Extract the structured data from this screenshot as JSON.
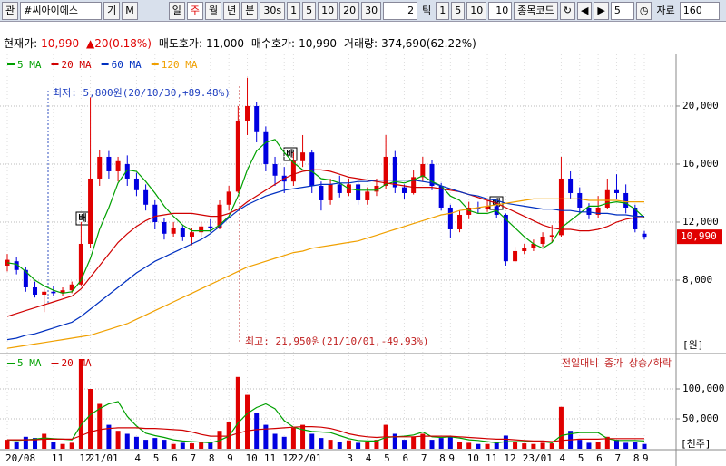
{
  "toolbar": {
    "search_icon": "관",
    "code": "#씨아이에스",
    "buttons": [
      "기",
      "M"
    ],
    "periods": [
      "일",
      "주",
      "월",
      "년",
      "분",
      "30s",
      "1",
      "5",
      "10",
      "20",
      "30"
    ],
    "tick_count": "2",
    "tick_label": "틱",
    "tick_buttons": [
      "1",
      "5",
      "10",
      "10"
    ],
    "code_label": "종목코드",
    "step": "5",
    "data_label": "자료",
    "data_count": "160"
  },
  "info": {
    "price_label": "현재가:",
    "price": "10,990",
    "change": "▲20(0.18%)",
    "ask_label": "매도호가:",
    "ask": "11,000",
    "bid_label": "매수호가:",
    "bid": "10,990",
    "volume_label": "거래량:",
    "volume": "374,690(62.22%)"
  },
  "chart_data": {
    "type": "candlestick",
    "categories": [
      "20/08",
      null,
      null,
      null,
      null,
      "11",
      null,
      null,
      "12",
      "21/01",
      null,
      null,
      null,
      null,
      "4",
      null,
      "5",
      null,
      "6",
      null,
      "7",
      null,
      "8",
      null,
      "9",
      null,
      "10",
      null,
      "11",
      null,
      "12",
      "22/01",
      null,
      null,
      null,
      null,
      null,
      "3",
      null,
      "4",
      null,
      "5",
      null,
      "6",
      null,
      "7",
      null,
      "8",
      "9",
      null,
      "10",
      null,
      "11",
      null,
      "12",
      null,
      "23/01",
      null,
      null,
      null,
      "4",
      null,
      "5",
      null,
      "6",
      null,
      "7",
      null,
      "8",
      "9"
    ],
    "candles": [
      [
        9000,
        9800,
        8600,
        9400
      ],
      [
        9300,
        9600,
        8400,
        8700
      ],
      [
        8700,
        8900,
        7200,
        7500
      ],
      [
        7500,
        7900,
        6800,
        7000
      ],
      [
        7000,
        7400,
        5800,
        7200
      ],
      [
        7200,
        7600,
        6900,
        7100
      ],
      [
        7100,
        7500,
        6900,
        7300
      ],
      [
        7300,
        7900,
        7100,
        7700
      ],
      [
        7700,
        12000,
        7600,
        10500
      ],
      [
        10500,
        20600,
        10200,
        15000
      ],
      [
        15000,
        17000,
        14500,
        16500
      ],
      [
        16500,
        16900,
        15000,
        15500
      ],
      [
        15500,
        16500,
        14800,
        16200
      ],
      [
        16000,
        16600,
        14500,
        15000
      ],
      [
        15000,
        15400,
        13800,
        14200
      ],
      [
        14200,
        14600,
        12800,
        13200
      ],
      [
        13200,
        13500,
        11500,
        12000
      ],
      [
        12000,
        12300,
        10800,
        11200
      ],
      [
        11200,
        12000,
        11000,
        11600
      ],
      [
        11600,
        11800,
        10700,
        11000
      ],
      [
        11000,
        11600,
        10400,
        11300
      ],
      [
        11300,
        12000,
        11000,
        11700
      ],
      [
        11700,
        12200,
        11300,
        11600
      ],
      [
        11600,
        13500,
        11500,
        13200
      ],
      [
        13200,
        14500,
        12800,
        14100
      ],
      [
        14100,
        20000,
        14000,
        19000
      ],
      [
        19000,
        21950,
        18000,
        20000
      ],
      [
        20000,
        20300,
        17500,
        18200
      ],
      [
        18200,
        18600,
        15500,
        16000
      ],
      [
        16000,
        16500,
        14500,
        15200
      ],
      [
        15200,
        15800,
        14000,
        14800
      ],
      [
        14800,
        16800,
        14500,
        16200
      ],
      [
        16200,
        18000,
        15800,
        16800
      ],
      [
        16800,
        17000,
        14000,
        14500
      ],
      [
        14500,
        14800,
        12800,
        13500
      ],
      [
        13500,
        15000,
        13200,
        14600
      ],
      [
        14600,
        15200,
        13700,
        14000
      ],
      [
        14000,
        15000,
        13800,
        14600
      ],
      [
        14600,
        14800,
        13200,
        13500
      ],
      [
        13500,
        14400,
        13200,
        14100
      ],
      [
        14100,
        15000,
        13800,
        14500
      ],
      [
        14500,
        18000,
        14300,
        16500
      ],
      [
        16500,
        16900,
        14000,
        14400
      ],
      [
        14400,
        14600,
        13600,
        14000
      ],
      [
        14000,
        15600,
        13900,
        15100
      ],
      [
        15100,
        16500,
        14800,
        16000
      ],
      [
        16000,
        16300,
        14200,
        14500
      ],
      [
        14500,
        14700,
        12800,
        13000
      ],
      [
        13000,
        13200,
        10900,
        11500
      ],
      [
        11500,
        12800,
        11300,
        12500
      ],
      [
        12500,
        13400,
        12200,
        13000
      ],
      [
        13000,
        13400,
        12600,
        12900
      ],
      [
        12900,
        13500,
        12700,
        13100
      ],
      [
        13100,
        13400,
        12300,
        12500
      ],
      [
        12500,
        12600,
        9000,
        9300
      ],
      [
        9300,
        10300,
        9200,
        10000
      ],
      [
        10000,
        10500,
        9800,
        10200
      ],
      [
        10200,
        10800,
        10000,
        10500
      ],
      [
        10500,
        11300,
        10300,
        11000
      ],
      [
        11000,
        11800,
        10600,
        11100
      ],
      [
        11100,
        16500,
        11000,
        15000
      ],
      [
        15000,
        15500,
        13600,
        14000
      ],
      [
        14000,
        14400,
        12600,
        13000
      ],
      [
        13000,
        13300,
        12200,
        12500
      ],
      [
        12500,
        13800,
        12300,
        13000
      ],
      [
        13000,
        15000,
        12900,
        14200
      ],
      [
        14200,
        15300,
        13600,
        14000
      ],
      [
        14000,
        14600,
        12600,
        13000
      ],
      [
        13000,
        13200,
        11300,
        11500
      ],
      [
        11200,
        11400,
        10800,
        10990
      ]
    ],
    "up_color": "#e00000",
    "down_color": "#0000e0",
    "series": [
      {
        "name": "5 MA",
        "color": "#00a000",
        "values": [
          9200,
          9100,
          8600,
          8000,
          7600,
          7300,
          7100,
          7200,
          8000,
          9500,
          11500,
          13000,
          14700,
          15600,
          15500,
          14800,
          14000,
          13100,
          12400,
          11800,
          11400,
          11400,
          11400,
          11800,
          12400,
          13800,
          15600,
          16900,
          17500,
          17700,
          16800,
          16100,
          15600,
          15500,
          15000,
          14900,
          14700,
          14300,
          14200,
          14200,
          14200,
          14600,
          14800,
          14700,
          14900,
          15200,
          14800,
          14500,
          13800,
          13500,
          12800,
          12600,
          12600,
          12800,
          12200,
          11600,
          11000,
          10500,
          10200,
          10600,
          11600,
          12100,
          12600,
          13100,
          13100,
          13300,
          13400,
          13300,
          12900,
          12300
        ]
      },
      {
        "name": "20 MA",
        "color": "#d00000",
        "values": [
          5500,
          5700,
          5900,
          6100,
          6300,
          6500,
          6700,
          6900,
          7400,
          8200,
          9000,
          9800,
          10600,
          11200,
          11700,
          12100,
          12400,
          12500,
          12600,
          12600,
          12600,
          12500,
          12400,
          12400,
          12600,
          12900,
          13400,
          13800,
          14200,
          14600,
          15000,
          15300,
          15500,
          15600,
          15600,
          15500,
          15300,
          15100,
          15000,
          14900,
          14800,
          14700,
          14600,
          14500,
          14400,
          14400,
          14400,
          14300,
          14200,
          14100,
          13900,
          13700,
          13500,
          13300,
          13000,
          12700,
          12400,
          12100,
          11800,
          11600,
          11500,
          11500,
          11400,
          11400,
          11500,
          11700,
          12000,
          12200,
          12300,
          12300
        ]
      },
      {
        "name": "60 MA",
        "color": "#0030c0",
        "values": [
          3900,
          4000,
          4200,
          4300,
          4500,
          4700,
          4900,
          5100,
          5500,
          6000,
          6500,
          7000,
          7500,
          8000,
          8500,
          8900,
          9300,
          9600,
          9900,
          10200,
          10500,
          10800,
          11200,
          11700,
          12300,
          12800,
          13200,
          13500,
          13800,
          14000,
          14200,
          14300,
          14400,
          14500,
          14600,
          14600,
          14700,
          14700,
          14800,
          14800,
          14900,
          14900,
          14900,
          14900,
          14900,
          14800,
          14700,
          14500,
          14300,
          14100,
          13900,
          13800,
          13600,
          13500,
          13300,
          13200,
          13100,
          13000,
          12900,
          12900,
          12800,
          12800,
          12700,
          12700,
          12600,
          12600,
          12500,
          12500,
          12400,
          12400
        ]
      },
      {
        "name": "120 MA",
        "color": "#f0a000",
        "values": [
          3300,
          3400,
          3500,
          3600,
          3700,
          3800,
          3900,
          4000,
          4100,
          4200,
          4400,
          4600,
          4800,
          5000,
          5300,
          5600,
          5900,
          6200,
          6500,
          6800,
          7100,
          7400,
          7700,
          8000,
          8300,
          8600,
          8900,
          9100,
          9300,
          9500,
          9700,
          9900,
          10000,
          10200,
          10300,
          10400,
          10500,
          10600,
          10700,
          10900,
          11100,
          11300,
          11500,
          11700,
          11900,
          12100,
          12300,
          12500,
          12600,
          12800,
          12900,
          13000,
          13100,
          13200,
          13300,
          13400,
          13500,
          13600,
          13600,
          13600,
          13600,
          13600,
          13600,
          13500,
          13500,
          13500,
          13500,
          13400,
          13400,
          13400
        ]
      }
    ],
    "ylim": [
      3250,
      23560
    ],
    "yticks": [
      {
        "value": 8000,
        "label": "8,000"
      },
      {
        "value": 12000,
        "label": "12,000"
      },
      {
        "value": 16000,
        "label": "16,000"
      },
      {
        "value": 20000,
        "label": "20,000"
      }
    ],
    "grid": true,
    "unit": "[원]",
    "last_price": {
      "value": 10990,
      "label": "10,990"
    },
    "low_note": "최저: 5,800원(20/10/30,+89.48%)",
    "high_note": "최고: 21,950원(21/10/01,-49.93%)",
    "markers": [
      "배",
      "배",
      "배"
    ],
    "volume": {
      "values": [
        15000,
        12000,
        20000,
        18000,
        25000,
        12000,
        8000,
        10000,
        150000,
        100000,
        75000,
        40000,
        30000,
        25000,
        20000,
        15000,
        18000,
        15000,
        8000,
        10000,
        9000,
        12000,
        10000,
        30000,
        45000,
        120000,
        90000,
        60000,
        40000,
        25000,
        20000,
        35000,
        40000,
        25000,
        18000,
        15000,
        12000,
        14000,
        10000,
        12000,
        15000,
        40000,
        25000,
        15000,
        20000,
        25000,
        15000,
        18000,
        20000,
        12000,
        10000,
        8000,
        8000,
        10000,
        22000,
        12000,
        9000,
        8000,
        10000,
        9000,
        70000,
        30000,
        15000,
        10000,
        12000,
        20000,
        15000,
        10000,
        12000,
        8000
      ],
      "ylim": [
        0,
        150000
      ],
      "yticks": [
        {
          "value": 50000,
          "label": "50,000"
        },
        {
          "value": 100000,
          "label": "100,000"
        }
      ],
      "unit": "[천주]",
      "note": "전일대비 종가 상승/하락",
      "series": [
        {
          "name": "5 MA",
          "color": "#00a000",
          "values": [
            15000,
            14000,
            15000,
            16000,
            18000,
            17000,
            16000,
            15000,
            40000,
            57000,
            67000,
            75000,
            79000,
            54000,
            38000,
            26000,
            22000,
            19000,
            15000,
            13000,
            12000,
            11000,
            10000,
            14000,
            21000,
            43000,
            59000,
            69000,
            75000,
            67000,
            47000,
            36000,
            32000,
            29000,
            28000,
            27000,
            22000,
            17000,
            14000,
            13000,
            13000,
            19000,
            20000,
            21000,
            23000,
            28000,
            20000,
            19000,
            20000,
            18000,
            15000,
            14000,
            12000,
            10000,
            12000,
            12000,
            12000,
            12000,
            12000,
            10000,
            22000,
            25000,
            27000,
            27000,
            27000,
            17000,
            14000,
            14000,
            14000,
            13000
          ]
        },
        {
          "name": "20 MA",
          "color": "#d00000",
          "values": [
            15000,
            15000,
            15000,
            15000,
            16000,
            16000,
            16000,
            16000,
            22000,
            28000,
            32000,
            34000,
            35000,
            35000,
            35000,
            34000,
            34000,
            33000,
            32000,
            31000,
            28000,
            24000,
            21000,
            21000,
            21000,
            26000,
            30000,
            32000,
            33000,
            34000,
            35000,
            36000,
            37000,
            37000,
            36000,
            34000,
            30000,
            25000,
            22000,
            20000,
            19000,
            20000,
            20000,
            20000,
            20000,
            21000,
            21000,
            21000,
            21000,
            20000,
            19000,
            18000,
            17000,
            16000,
            16000,
            15000,
            14000,
            13000,
            13000,
            12000,
            14000,
            15000,
            16000,
            16000,
            16000,
            17000,
            17000,
            17000,
            17000,
            17000
          ]
        }
      ]
    }
  }
}
